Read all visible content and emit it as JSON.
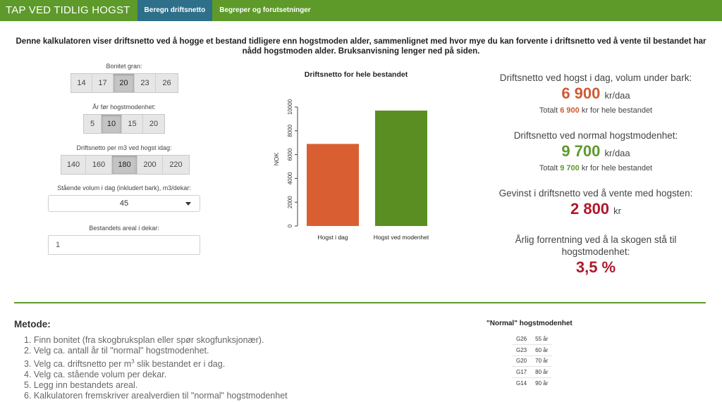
{
  "navbar": {
    "brand": "TAP VED TIDLIG HOGST",
    "tabs": [
      {
        "label": "Beregn driftsnetto",
        "active": true
      },
      {
        "label": "Begreper og forutsetninger",
        "active": false
      }
    ],
    "color": "#5d9a2a",
    "active_tab_color": "#2e6f8a"
  },
  "intro": "Denne kalkulatoren viser driftsnetto ved å hogge et bestand tidligere enn hogstmoden alder, sammenlignet med hvor mye du kan forvente i driftsnetto ved å vente til bestandet har nådd hogstmoden alder. Bruksanvisning lenger ned på siden.",
  "controls": {
    "bonitet": {
      "label": "Bonitet gran:",
      "options": [
        "14",
        "17",
        "20",
        "23",
        "26"
      ],
      "selected": "20"
    },
    "aar": {
      "label": "År før hogstmodenhet:",
      "options": [
        "5",
        "10",
        "15",
        "20"
      ],
      "selected": "10"
    },
    "driftsnetto_m3": {
      "label": "Driftsnetto per m3 ved hogst idag:",
      "options": [
        "140",
        "160",
        "180",
        "200",
        "220"
      ],
      "selected": "180"
    },
    "volum": {
      "label": "Stående volum i dag (inkludert bark), m3/dekar:",
      "value": "45"
    },
    "areal": {
      "label": "Bestandets areal i dekar:",
      "value": "1"
    }
  },
  "chart_data": {
    "type": "bar",
    "title": "Driftsnetto for hele bestandet",
    "categories": [
      "Hogst i dag",
      "Hogst ved modenhet"
    ],
    "values": [
      6900,
      9700
    ],
    "colors": [
      "#d95f33",
      "#5b8e22"
    ],
    "xlabel": "",
    "ylabel": "NOK",
    "ylim": [
      0,
      10000
    ],
    "yticks": [
      "0",
      "2000",
      "4000",
      "6000",
      "8000",
      "10000"
    ],
    "grid": false
  },
  "results": {
    "r1": {
      "title": "Driftsnetto ved hogst i dag, volum under bark:",
      "value": "6 900",
      "unit": "kr/daa",
      "total_pre": "Totalt",
      "total_value": "6 900",
      "total_post": "kr for hele bestandet"
    },
    "r2": {
      "title": "Driftsnetto ved normal hogstmodenhet:",
      "value": "9 700",
      "unit": "kr/daa",
      "total_pre": "Totalt",
      "total_value": "9 700",
      "total_post": "kr for hele bestandet"
    },
    "r3": {
      "title": "Gevinst i driftsnetto ved å vente med hogsten:",
      "value": "2 800",
      "unit": "kr"
    },
    "r4": {
      "title_line1": "Årlig forrentning ved å la skogen stå til",
      "title_line2": "hogstmodenhet:",
      "value": "3,5 %"
    }
  },
  "metode": {
    "heading": "Metode:",
    "steps": [
      "1. Finn bonitet (fra skogbruksplan eller spør skogfunksjonær).",
      "2. Velg ca. antall år til \"normal\" hogstmodenhet.",
      "3. Velg ca. driftsnetto per m",
      "4. Velg ca. stående volum per dekar.",
      "5. Legg inn bestandets areal.",
      "6. Kalkulatoren fremskriver arealverdien til \"normal\" hogstmodenhet"
    ],
    "step3_sup": "3",
    "step3_tail": " slik bestandet er i dag."
  },
  "maturity_table": {
    "title": "\"Normal\" hogstmodenhet",
    "rows": [
      [
        "G26",
        "55 år"
      ],
      [
        "G23",
        "60 år"
      ],
      [
        "G20",
        "70 år"
      ],
      [
        "G17",
        "80 år"
      ],
      [
        "G14",
        "90 år"
      ]
    ]
  }
}
